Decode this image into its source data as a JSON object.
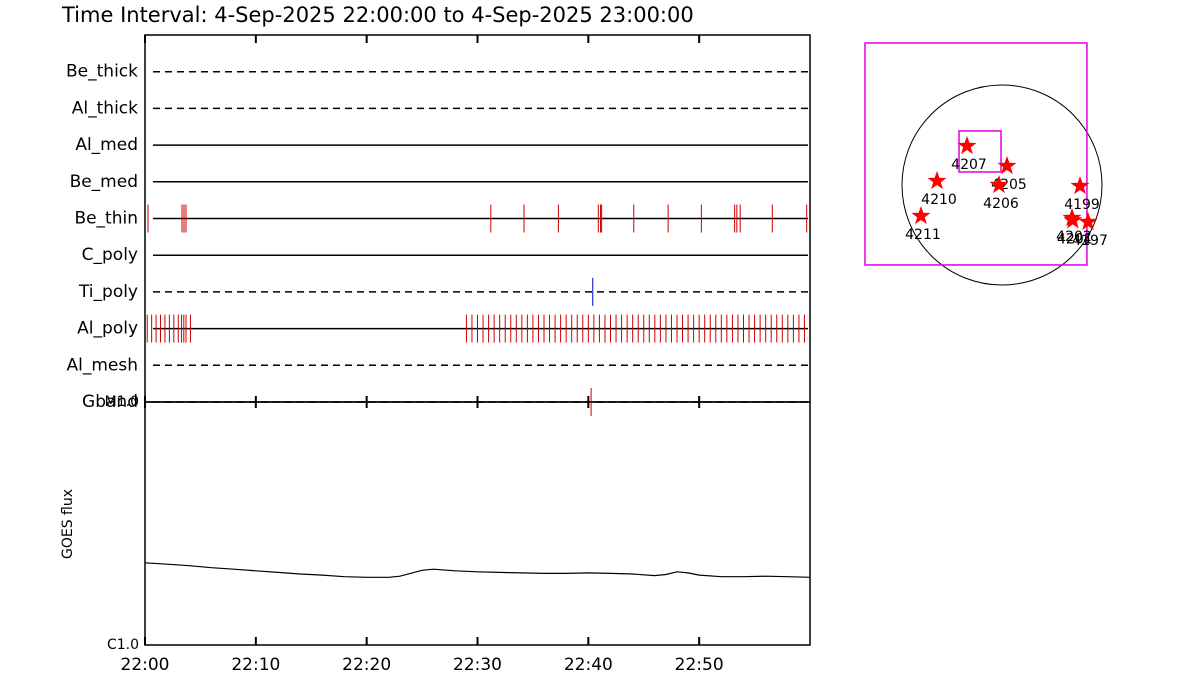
{
  "chart_data": {
    "type": "timeline",
    "title": "Time Interval:  4-Sep-2025 22:00:00 to  4-Sep-2025 23:00:00",
    "xlim": [
      0,
      60
    ],
    "xticks": [
      {
        "value": 0,
        "label": "22:00"
      },
      {
        "value": 10,
        "label": "22:10"
      },
      {
        "value": 20,
        "label": "22:20"
      },
      {
        "value": 30,
        "label": "22:30"
      },
      {
        "value": 40,
        "label": "22:40"
      },
      {
        "value": 50,
        "label": "22:50"
      }
    ],
    "filters": [
      {
        "name": "Be_thick",
        "style": "dashed",
        "color": "#cc0000",
        "times": []
      },
      {
        "name": "Al_thick",
        "style": "dashed",
        "color": "#cc0000",
        "times": []
      },
      {
        "name": "Al_med",
        "style": "solid",
        "color": "#cc0000",
        "times": []
      },
      {
        "name": "Be_med",
        "style": "solid",
        "color": "#cc0000",
        "times": []
      },
      {
        "name": "Be_thin",
        "style": "solid",
        "color": "#cc0000",
        "times": [
          0.27,
          3.34,
          3.52,
          3.7,
          31.2,
          34.2,
          37.3,
          40.9,
          41.1,
          41.2,
          44.1,
          47.2,
          50.2,
          53.2,
          53.4,
          53.7,
          56.6,
          59.7
        ]
      },
      {
        "name": "C_poly",
        "style": "solid",
        "color": "#cc0000",
        "times": []
      },
      {
        "name": "Ti_poly",
        "style": "dashed",
        "color": "#0000cc",
        "times": [
          40.4
        ]
      },
      {
        "name": "Al_poly",
        "style": "solid",
        "color": "#cc0000",
        "times": [
          0.2,
          0.6,
          1.0,
          1.4,
          1.8,
          2.2,
          2.6,
          3.0,
          3.3,
          3.5,
          3.7,
          4.1,
          29.0,
          29.5,
          30.0,
          30.5,
          31.0,
          31.5,
          32.0,
          32.5,
          33.0,
          33.5,
          34.0,
          34.5,
          35.0,
          35.5,
          36.0,
          36.5,
          37.0,
          37.5,
          38.0,
          38.5,
          39.0,
          39.5,
          40.0,
          40.5,
          41.0,
          41.5,
          42.0,
          42.5,
          43.0,
          43.5,
          44.0,
          44.5,
          45.0,
          45.5,
          46.0,
          46.5,
          47.0,
          47.5,
          48.0,
          48.5,
          49.0,
          49.5,
          50.0,
          50.5,
          51.0,
          51.5,
          52.0,
          52.5,
          53.0,
          53.5,
          54.0,
          54.5,
          55.0,
          55.5,
          56.0,
          56.5,
          57.0,
          57.5,
          58.0,
          58.5,
          59.0,
          59.5
        ]
      },
      {
        "name": "Al_mesh",
        "style": "dashed",
        "color": "#cc0000",
        "times": []
      },
      {
        "name": "Gband",
        "style": "dashed",
        "color": "#cc0000",
        "times": [
          40.25
        ]
      }
    ],
    "goes": {
      "ylabel": "GOES flux",
      "log_scale": true,
      "ylim": [
        1e-06,
        1e-05
      ],
      "yticks": [
        {
          "value": 1e-05,
          "label": "M1.0"
        },
        {
          "value": 1e-06,
          "label": "C1.0"
        }
      ],
      "color": "#000000",
      "x": [
        0,
        2,
        4,
        6,
        8,
        10,
        12,
        14,
        16,
        18,
        20,
        22,
        23,
        25,
        26,
        28,
        30,
        32,
        34,
        36,
        38,
        40,
        42,
        44,
        46,
        47,
        48,
        49,
        50,
        52,
        54,
        56,
        58,
        60
      ],
      "values": [
        2.18e-06,
        2.15e-06,
        2.12e-06,
        2.08e-06,
        2.05e-06,
        2.02e-06,
        1.99e-06,
        1.96e-06,
        1.94e-06,
        1.91e-06,
        1.9e-06,
        1.9e-06,
        1.92e-06,
        2.03e-06,
        2.05e-06,
        2.02e-06,
        2e-06,
        1.99e-06,
        1.98e-06,
        1.97e-06,
        1.97e-06,
        1.98e-06,
        1.97e-06,
        1.96e-06,
        1.93e-06,
        1.95e-06,
        2e-06,
        1.98e-06,
        1.94e-06,
        1.91e-06,
        1.91e-06,
        1.92e-06,
        1.91e-06,
        1.9e-06
      ]
    },
    "map": {
      "rsun": 960,
      "star_color": "#ff0000",
      "box_color": "#e000e0",
      "regions": [
        {
          "label": "4207",
          "x": -336,
          "y": 374
        },
        {
          "label": "4205",
          "x": 48,
          "y": 182
        },
        {
          "label": "4206",
          "x": -29,
          "y": 0
        },
        {
          "label": "4210",
          "x": -624,
          "y": 38
        },
        {
          "label": "4211",
          "x": -778,
          "y": -298
        },
        {
          "label": "4199",
          "x": 749,
          "y": -10
        },
        {
          "label": "4202",
          "x": 672,
          "y": -317
        },
        {
          "label": "4201",
          "x": 680,
          "y": -340
        },
        {
          "label": "4197",
          "x": 826,
          "y": -355
        }
      ],
      "boxes": [
        {
          "xc": -250,
          "yc": 298,
          "width": 2131,
          "height": 2131
        },
        {
          "xc": -211,
          "yc": 322,
          "width": 403,
          "height": 394
        }
      ]
    }
  }
}
